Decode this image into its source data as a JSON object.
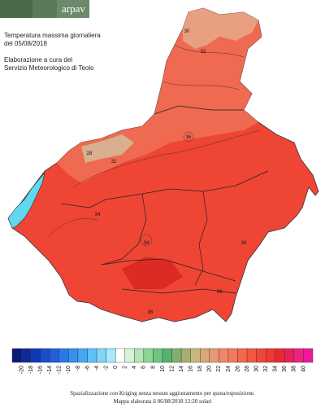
{
  "header": {
    "logo": "arpav",
    "title": "Temperatura massima giornaliera",
    "date": "del 05/08/2018",
    "credit_line1": "Elaborazione a cura del",
    "credit_line2": "Servizio Meteorologico di Teolo"
  },
  "map": {
    "contour_labels": [
      34,
      32,
      30,
      34,
      36,
      34,
      32,
      28,
      34,
      36
    ]
  },
  "legend": {
    "ticks": [
      -20,
      -18,
      -16,
      -14,
      -12,
      -10,
      -8,
      -6,
      -4,
      -2,
      0,
      2,
      4,
      6,
      8,
      10,
      12,
      14,
      16,
      18,
      20,
      22,
      24,
      26,
      28,
      30,
      32,
      34,
      36,
      38,
      40
    ],
    "colors": [
      "#0a1a7a",
      "#0d2a9a",
      "#1038b5",
      "#1a4ccc",
      "#2060dd",
      "#2a78e8",
      "#3590f0",
      "#45a8f5",
      "#60c0f8",
      "#80d5fa",
      "#a8e8fc",
      "#ffffff",
      "#d8f2d8",
      "#b5e5b5",
      "#90d595",
      "#70c580",
      "#58b070",
      "#80b070",
      "#a8b070",
      "#c8b880",
      "#d8a878",
      "#e89878",
      "#f08868",
      "#f47860",
      "#f46850",
      "#f45840",
      "#f04838",
      "#ee3830",
      "#e82830",
      "#e8205a",
      "#ee2080",
      "#f01898"
    ]
  },
  "footer": {
    "line1": "Spazializzazione con Kriging senza nessun aggiustamento per quota/esposizione.",
    "line2": "Mappa elaborata il 06/08/2018 12:20 solari"
  }
}
